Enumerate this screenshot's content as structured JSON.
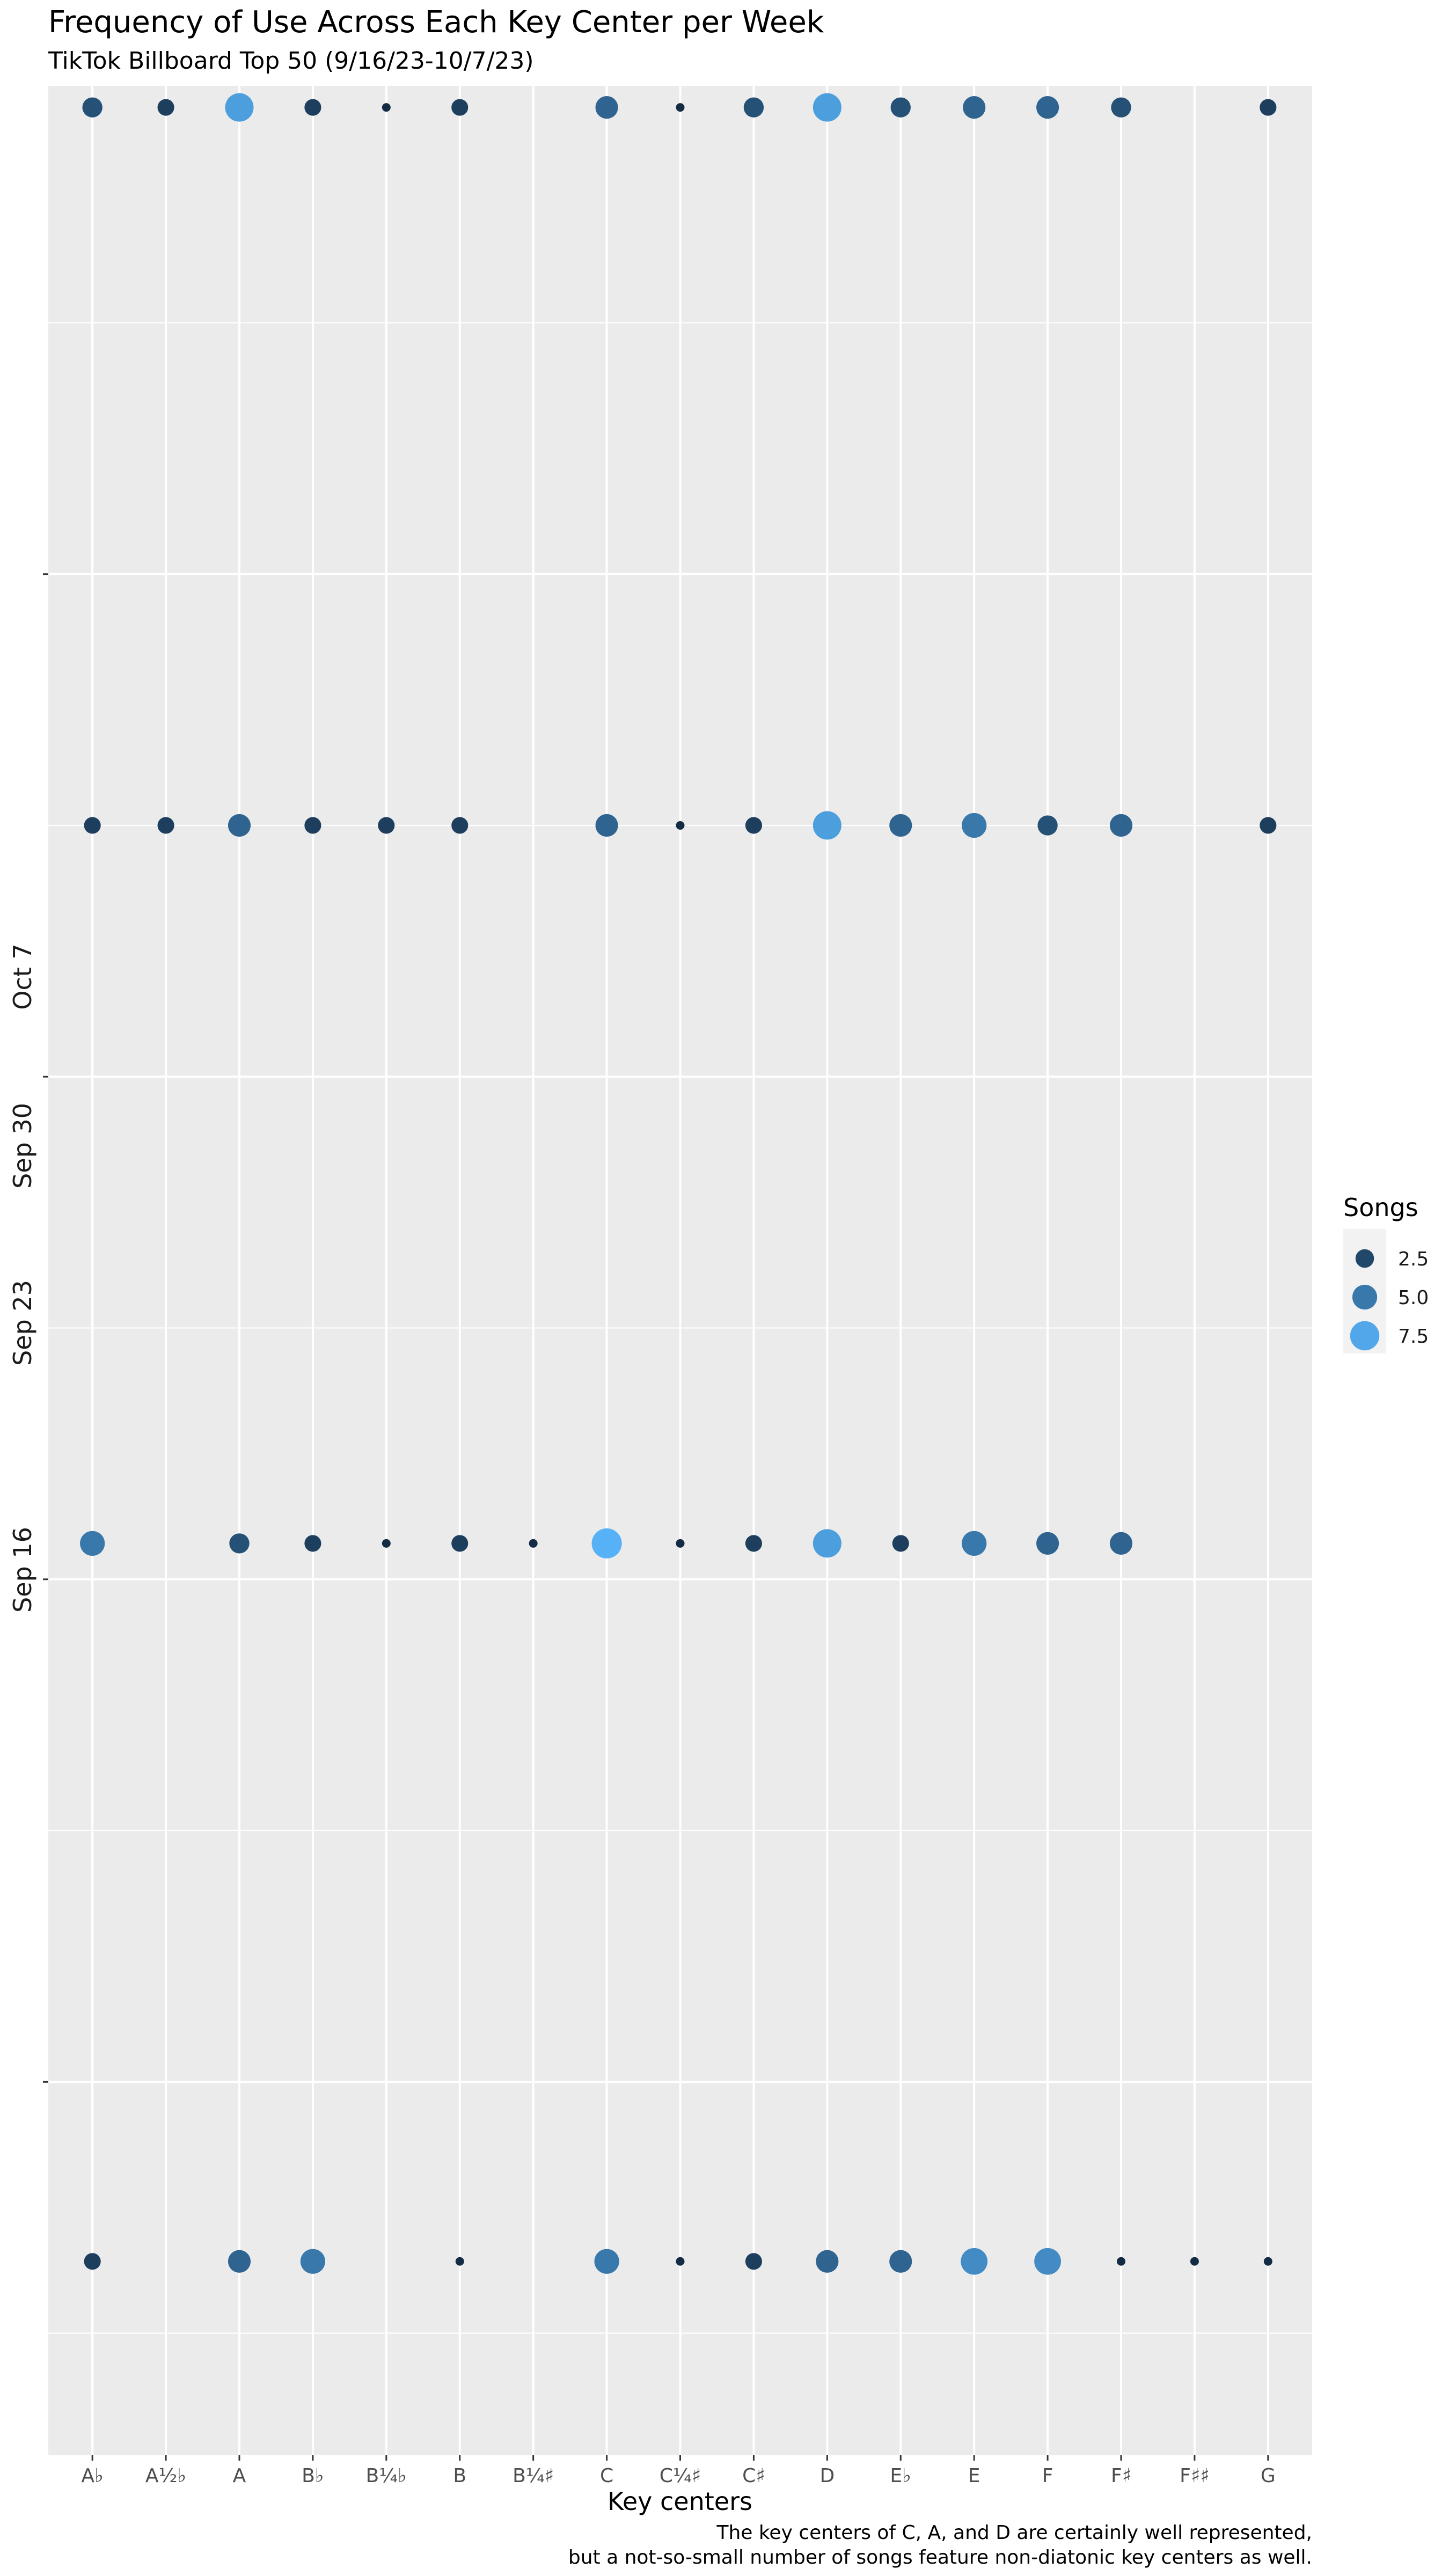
{
  "chart_data": {
    "type": "scatter",
    "title": "Frequency of Use Across Each Key Center per Week",
    "subtitle": "TikTok Billboard Top 50 (9/16/23-10/7/23)",
    "xlabel": "Key centers",
    "ylabel": "",
    "caption_lines": [
      "The key centers of C, A, and D are certainly well represented,",
      "but a not-so-small number of songs feature non-diatonic key centers as well."
    ],
    "categories": [
      "A♭",
      "A½♭",
      "A",
      "B♭",
      "B¼♭",
      "B",
      "B¼♯",
      "C",
      "C¼♯",
      "C♯",
      "D",
      "E♭",
      "E",
      "F",
      "F♯",
      "F♯♯",
      "G"
    ],
    "y_ticks": [
      {
        "label": "Sep 16",
        "value": 16.5
      },
      {
        "label": "Sep 23",
        "value": 23.5
      },
      {
        "label": "Sep 30",
        "value": 30.5
      },
      {
        "label": "Oct 7",
        "value": 37.5
      }
    ],
    "ylim": [
      11.3,
      44.3
    ],
    "legend": {
      "title": "Songs",
      "entries": [
        {
          "label": "2.5",
          "value": 2.5
        },
        {
          "label": "5.0",
          "value": 5.0
        },
        {
          "label": "7.5",
          "value": 7.5
        }
      ],
      "position": "right"
    },
    "size_range": [
      1,
      8
    ],
    "color_low": "#132b43",
    "color_high": "#56b1f7",
    "panel_background": "#ebebeb",
    "grid": true,
    "series": [
      {
        "y": 14,
        "values": [
          2,
          0,
          4,
          5,
          0,
          1,
          0,
          5,
          1,
          2,
          4,
          4,
          6,
          6,
          1,
          1,
          1
        ]
      },
      {
        "y": 24,
        "values": [
          5,
          0,
          3,
          2,
          1,
          2,
          1,
          8,
          1,
          2,
          7,
          2,
          5,
          4,
          4,
          0,
          0
        ]
      },
      {
        "y": 34,
        "values": [
          2,
          2,
          4,
          2,
          2,
          2,
          0,
          4,
          1,
          2,
          7,
          4,
          5,
          3,
          4,
          0,
          2
        ]
      },
      {
        "y": 44,
        "values": [
          3,
          2,
          7,
          2,
          1,
          2,
          0,
          4,
          1,
          3,
          7,
          3,
          4,
          4,
          3,
          0,
          2
        ]
      }
    ]
  }
}
